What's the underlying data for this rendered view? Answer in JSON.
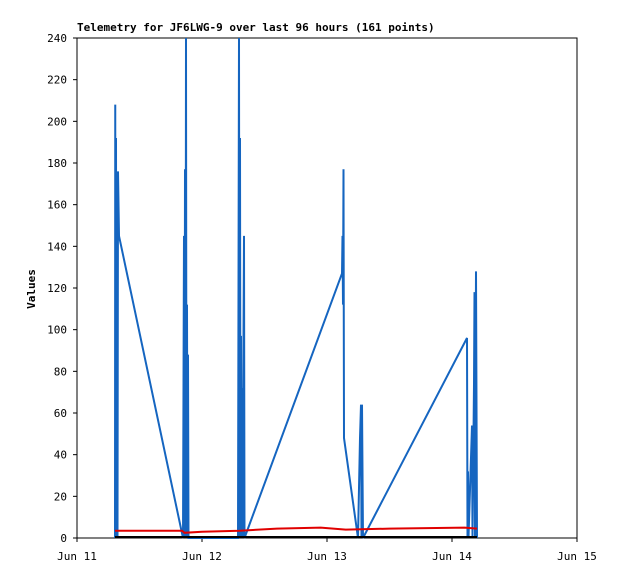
{
  "chart_data": {
    "type": "line",
    "title": "Telemetry for JF6LWG-9 over last 96 hours (161 points)",
    "y_label": "Values",
    "xlim": [
      11,
      15
    ],
    "xticks": [
      {
        "value": 11,
        "label": "Jun 11"
      },
      {
        "value": 12,
        "label": "Jun 12"
      },
      {
        "value": 13,
        "label": "Jun 13"
      },
      {
        "value": 14,
        "label": "Jun 14"
      },
      {
        "value": 15,
        "label": "Jun 15"
      }
    ],
    "ylim": [
      0,
      240
    ],
    "yticks": [
      0,
      20,
      40,
      60,
      80,
      100,
      120,
      140,
      160,
      180,
      200,
      220,
      240
    ],
    "grid": false,
    "series": [
      {
        "color": "#1565c0",
        "x": [
          11.304,
          11.306,
          11.308,
          11.312,
          11.316,
          11.32,
          11.324,
          11.328,
          11.336,
          11.848,
          11.856,
          11.86,
          11.864,
          11.868,
          11.872,
          11.876,
          11.88,
          11.884,
          11.888,
          11.892,
          12.288,
          12.296,
          12.3,
          12.304,
          12.308,
          12.312,
          12.316,
          12.32,
          12.324,
          12.336,
          12.34,
          13.12,
          13.124,
          13.128,
          13.132,
          13.136,
          13.248,
          13.264,
          13.272,
          13.276,
          13.28,
          13.288,
          14.12,
          14.124,
          14.128,
          14.132,
          14.16,
          14.164,
          14.176,
          14.18,
          14.184,
          14.192,
          14.2
        ],
        "values": [
          0,
          208,
          0,
          192,
          0,
          88,
          0,
          176,
          145,
          0,
          145,
          0,
          177,
          0,
          240,
          0,
          112,
          0,
          88,
          0,
          0,
          240,
          0,
          192,
          0,
          97,
          0,
          72,
          0,
          145,
          0,
          127,
          145,
          112,
          177,
          48,
          0,
          48,
          64,
          0,
          64,
          0,
          96,
          0,
          32,
          0,
          54,
          0,
          74,
          118,
          0,
          128,
          0
        ]
      },
      {
        "color": "#e00000",
        "x": [
          11.304,
          11.84,
          11.86,
          12.0,
          12.3,
          12.6,
          12.95,
          13.15,
          13.5,
          14.1,
          14.2
        ],
        "values": [
          3.5,
          3.5,
          2.5,
          3,
          3.5,
          4.5,
          5,
          4,
          4.5,
          5,
          4.5
        ]
      },
      {
        "color": "#000000",
        "x": [
          11.304,
          14.2
        ],
        "values": [
          0.5,
          0.5
        ]
      }
    ]
  }
}
